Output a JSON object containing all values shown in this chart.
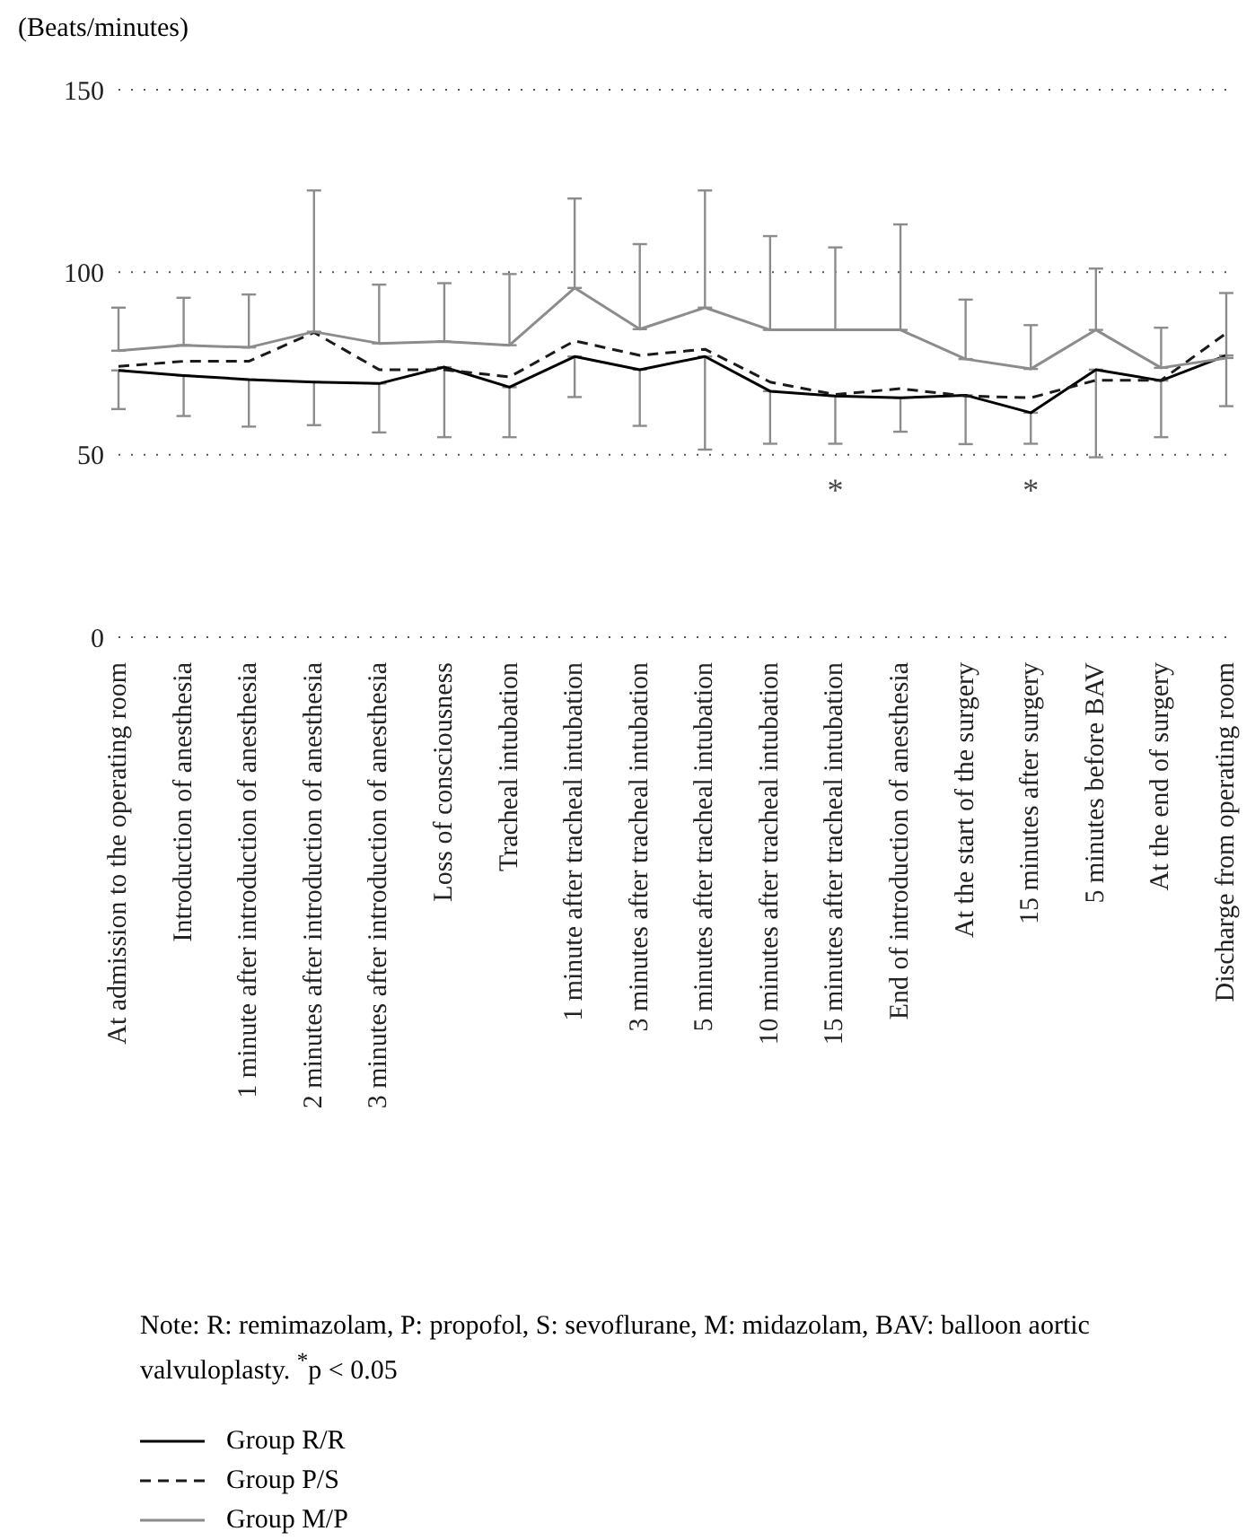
{
  "chart_data": {
    "type": "line",
    "ylabel": "(Beats/minutes)",
    "categories": [
      "At admission to the operating room",
      "Introduction of anesthesia",
      "1 minute after introduction of anesthesia",
      "2 minutes after introduction of anesthesia",
      "3 minutes after introduction of anesthesia",
      "Loss of consciousness",
      "Tracheal intubation",
      "1 minute after tracheal intubation",
      "3 minutes after tracheal intubation",
      "5 minutes after tracheal intubation",
      "10 minutes after tracheal intubation",
      "15 minutes after tracheal intubation",
      "End of introduction of anesthesia",
      "At the start of the surgery",
      "15 minutes after surgery",
      "5 minutes before BAV",
      "At the end of surgery",
      "Discharge from operating room"
    ],
    "series": [
      {
        "name": "Group R/R",
        "color": "#000000",
        "line_style": "solid",
        "values": [
          73.1,
          71.7,
          70.6,
          69.9,
          69.5,
          74,
          68.5,
          76.9,
          73.3,
          76.9,
          67.4,
          66.1,
          65.6,
          66.3,
          61.5,
          73.3,
          70.3,
          77.2
        ],
        "errors": [
          [
            62.5,
            73.1
          ],
          [
            60.6,
            71.7
          ],
          [
            57.7,
            70.6
          ],
          [
            58.1,
            69.9
          ],
          [
            56.1,
            69.5
          ],
          [
            54.8,
            74
          ],
          [
            54.8,
            68.5
          ],
          [
            65.8,
            76.9
          ],
          [
            57.9,
            73.3
          ],
          [
            51.4,
            76.9
          ],
          [
            53,
            67.4
          ],
          [
            53,
            66.1
          ],
          [
            56.3,
            65.6
          ],
          [
            52.9,
            66.3
          ],
          [
            53,
            61.5
          ],
          [
            49.3,
            73.3
          ],
          [
            54.8,
            70.3
          ],
          [
            63.3,
            77.2
          ]
        ]
      },
      {
        "name": "Group P/S",
        "color": "#1a1a1a",
        "line_style": "dashed",
        "values": [
          74.2,
          75.6,
          75.6,
          83.5,
          73.3,
          73.3,
          71.3,
          81.2,
          77.2,
          78.9,
          69.9,
          66.5,
          68.1,
          66.1,
          65.6,
          70.4,
          70.4,
          83.3
        ]
      },
      {
        "name": "Group M/P",
        "color": "#8c8c8c",
        "line_style": "solid",
        "values": [
          78.5,
          80,
          79.4,
          83.7,
          80.5,
          81,
          80,
          95.7,
          84.4,
          90.3,
          84.2,
          84.2,
          84.2,
          76.2,
          73.5,
          84.2,
          73.8,
          76.5
        ],
        "errors": [
          [
            78.5,
            90.3
          ],
          [
            80,
            93
          ],
          [
            79.4,
            93.9
          ],
          [
            83.7,
            122.4
          ],
          [
            80.5,
            96.6
          ],
          [
            81,
            97
          ],
          [
            80,
            99.5
          ],
          [
            95.7,
            120.2
          ],
          [
            84.4,
            107.7
          ],
          [
            90.3,
            122.4
          ],
          [
            84.2,
            109.9
          ],
          [
            84.2,
            106.8
          ],
          [
            84.2,
            113.1
          ],
          [
            76.2,
            92.5
          ],
          [
            73.5,
            85.5
          ],
          [
            84.2,
            101
          ],
          [
            73.8,
            84.8
          ],
          [
            76.5,
            94.3
          ]
        ]
      }
    ],
    "ylim": [
      0,
      150
    ],
    "yticks": [
      0,
      50,
      100,
      150
    ],
    "grid": "y",
    "marker": "none",
    "legend": "bottom left",
    "annotations": [
      "*",
      "*",
      "Note: R: remimazolam, P: propofol, S: sevoflurane, M: midazolam, BAV: balloon aortic valvuloplasty. $^{*}$p < 0.05"
    ]
  }
}
